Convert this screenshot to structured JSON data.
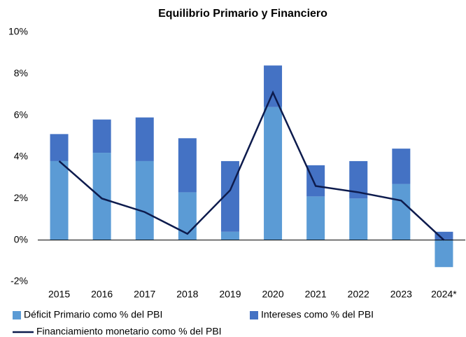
{
  "chart_data": {
    "type": "stacked_bar_line",
    "title": "Equilibrio Primario y Financiero",
    "categories": [
      "2015",
      "2016",
      "2017",
      "2018",
      "2019",
      "2020",
      "2021",
      "2022",
      "2023",
      "2024*"
    ],
    "series": [
      {
        "name": "Déficit Primario como % del PBI",
        "color": "#5b9bd5",
        "kind": "bar",
        "values": [
          3.8,
          4.2,
          3.8,
          2.3,
          0.4,
          6.4,
          2.1,
          2.0,
          2.7,
          -1.3
        ]
      },
      {
        "name": "Intereses como % del PBI",
        "color": "#4472c4",
        "kind": "bar",
        "values": [
          1.3,
          1.6,
          2.1,
          2.6,
          3.4,
          2.0,
          1.5,
          1.8,
          1.7,
          0.4
        ]
      },
      {
        "name": "Financiamiento monetario como % del PBI",
        "color": "#0d1b4d",
        "kind": "line",
        "values": [
          3.8,
          2.0,
          1.35,
          0.3,
          2.4,
          7.1,
          2.6,
          2.3,
          1.9,
          0.0
        ]
      }
    ],
    "ylim": [
      -2,
      10
    ],
    "yticks": [
      {
        "value": -2,
        "label": "-2%"
      },
      {
        "value": 0,
        "label": "0%"
      },
      {
        "value": 2,
        "label": "2%"
      },
      {
        "value": 4,
        "label": "4%"
      },
      {
        "value": 6,
        "label": "6%"
      },
      {
        "value": 8,
        "label": "8%"
      },
      {
        "value": 10,
        "label": "10%"
      }
    ],
    "grid": false
  }
}
